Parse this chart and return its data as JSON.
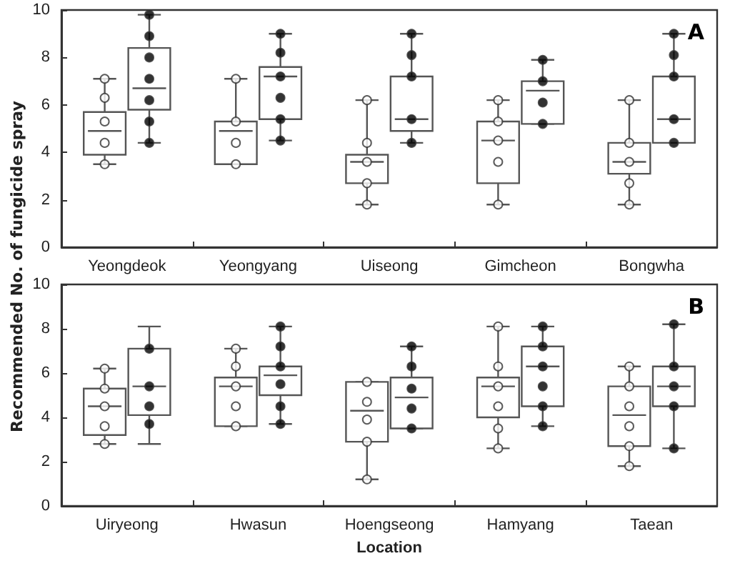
{
  "chart_data": [
    {
      "type": "box",
      "ylabel": "Recommended No. of fungicide spray",
      "annotations": [
        "A"
      ],
      "categories": [
        "Yeongdeok",
        "Yeongyang",
        "Uiseong",
        "Gimcheon",
        "Bongwha"
      ],
      "ylim": [
        0,
        10
      ],
      "yticks": [
        0,
        2,
        4,
        6,
        8,
        10
      ],
      "grid": false,
      "marker": "circle",
      "series": [
        {
          "type": "box",
          "color": "#555555",
          "boxes": [
            {
              "low": 3.5,
              "q1": 3.9,
              "median": 4.9,
              "q3": 5.7,
              "high": 7.1
            },
            {
              "low": 3.5,
              "q1": 3.5,
              "median": 4.9,
              "q3": 5.3,
              "high": 7.1
            },
            {
              "low": 1.8,
              "q1": 2.7,
              "median": 3.6,
              "q3": 3.9,
              "high": 6.2
            },
            {
              "low": 1.8,
              "q1": 2.7,
              "median": 4.5,
              "q3": 5.3,
              "high": 6.2
            },
            {
              "low": 1.8,
              "q1": 3.1,
              "median": 3.6,
              "q3": 4.4,
              "high": 6.2
            }
          ]
        },
        {
          "type": "box",
          "color": "#555555",
          "boxes": [
            {
              "low": 4.4,
              "q1": 5.8,
              "median": 6.7,
              "q3": 8.4,
              "high": 9.8
            },
            {
              "low": 4.5,
              "q1": 5.4,
              "median": 7.2,
              "q3": 7.6,
              "high": 9.0
            },
            {
              "low": 4.4,
              "q1": 4.9,
              "median": 5.4,
              "q3": 7.2,
              "high": 9.0
            },
            {
              "low": 5.2,
              "q1": 5.2,
              "median": 6.6,
              "q3": 7.0,
              "high": 7.9
            },
            {
              "low": 4.4,
              "q1": 4.4,
              "median": 5.4,
              "q3": 7.2,
              "high": 9.0
            }
          ]
        },
        {
          "type": "scatter",
          "color": "#ffffff",
          "x": [
            "Yeongdeok",
            "Yeongdeok",
            "Yeongdeok",
            "Yeongdeok",
            "Yeongdeok",
            "Yeongyang",
            "Yeongyang",
            "Yeongyang",
            "Yeongyang",
            "Uiseong",
            "Uiseong",
            "Uiseong",
            "Uiseong",
            "Uiseong",
            "Gimcheon",
            "Gimcheon",
            "Gimcheon",
            "Gimcheon",
            "Gimcheon",
            "Bongwha",
            "Bongwha",
            "Bongwha",
            "Bongwha",
            "Bongwha"
          ],
          "values": [
            7.1,
            6.3,
            5.3,
            4.4,
            3.5,
            7.1,
            5.3,
            4.4,
            3.5,
            6.2,
            4.4,
            3.6,
            2.7,
            1.8,
            6.2,
            5.3,
            4.5,
            3.6,
            1.8,
            6.2,
            4.4,
            3.6,
            2.7,
            1.8
          ]
        },
        {
          "type": "scatter",
          "color": "#000000",
          "x": [
            "Yeongdeok",
            "Yeongdeok",
            "Yeongdeok",
            "Yeongdeok",
            "Yeongdeok",
            "Yeongdeok",
            "Yeongdeok",
            "Yeongyang",
            "Yeongyang",
            "Yeongyang",
            "Yeongyang",
            "Yeongyang",
            "Yeongyang",
            "Uiseong",
            "Uiseong",
            "Uiseong",
            "Uiseong",
            "Uiseong",
            "Gimcheon",
            "Gimcheon",
            "Gimcheon",
            "Gimcheon",
            "Bongwha",
            "Bongwha",
            "Bongwha",
            "Bongwha",
            "Bongwha"
          ],
          "values": [
            9.8,
            8.9,
            8.0,
            7.1,
            6.2,
            5.3,
            4.4,
            9.0,
            8.2,
            7.2,
            6.3,
            5.4,
            4.5,
            9.0,
            8.1,
            7.2,
            5.4,
            4.4,
            7.9,
            7.0,
            6.1,
            5.2,
            9.0,
            8.1,
            7.2,
            5.4,
            4.4
          ]
        }
      ]
    },
    {
      "type": "box",
      "xlabel": "Location",
      "annotations": [
        "B"
      ],
      "categories": [
        "Uiryeong",
        "Hwasun",
        "Hoengseong",
        "Hamyang",
        "Taean"
      ],
      "ylim": [
        0,
        10
      ],
      "yticks": [
        0,
        2,
        4,
        6,
        8,
        10
      ],
      "grid": false,
      "marker": "circle",
      "series": [
        {
          "type": "box",
          "color": "#555555",
          "boxes": [
            {
              "low": 2.8,
              "q1": 3.2,
              "median": 4.5,
              "q3": 5.3,
              "high": 6.2
            },
            {
              "low": 3.6,
              "q1": 3.6,
              "median": 5.4,
              "q3": 5.8,
              "high": 7.1
            },
            {
              "low": 1.2,
              "q1": 2.9,
              "median": 4.3,
              "q3": 5.6,
              "high": 5.6
            },
            {
              "low": 2.6,
              "q1": 4.0,
              "median": 5.4,
              "q3": 5.8,
              "high": 8.1
            },
            {
              "low": 1.8,
              "q1": 2.7,
              "median": 4.1,
              "q3": 5.4,
              "high": 6.3
            }
          ]
        },
        {
          "type": "box",
          "color": "#555555",
          "boxes": [
            {
              "low": 2.8,
              "q1": 4.1,
              "median": 5.4,
              "q3": 7.1,
              "high": 8.1
            },
            {
              "low": 3.7,
              "q1": 5.0,
              "median": 5.9,
              "q3": 6.3,
              "high": 8.1
            },
            {
              "low": 3.5,
              "q1": 3.5,
              "median": 4.9,
              "q3": 5.8,
              "high": 7.2
            },
            {
              "low": 3.6,
              "q1": 4.5,
              "median": 6.3,
              "q3": 7.2,
              "high": 8.1
            },
            {
              "low": 2.6,
              "q1": 4.5,
              "median": 5.4,
              "q3": 6.3,
              "high": 8.2
            }
          ]
        },
        {
          "type": "scatter",
          "color": "#ffffff",
          "x": [
            "Uiryeong",
            "Uiryeong",
            "Uiryeong",
            "Uiryeong",
            "Uiryeong",
            "Hwasun",
            "Hwasun",
            "Hwasun",
            "Hwasun",
            "Hwasun",
            "Hoengseong",
            "Hoengseong",
            "Hoengseong",
            "Hoengseong",
            "Hoengseong",
            "Hamyang",
            "Hamyang",
            "Hamyang",
            "Hamyang",
            "Hamyang",
            "Hamyang",
            "Taean",
            "Taean",
            "Taean",
            "Taean",
            "Taean",
            "Taean"
          ],
          "values": [
            6.2,
            5.3,
            4.5,
            3.6,
            2.8,
            7.1,
            6.3,
            5.4,
            4.5,
            3.6,
            5.6,
            4.7,
            3.9,
            2.9,
            1.2,
            8.1,
            6.3,
            5.4,
            4.5,
            3.5,
            2.6,
            6.3,
            5.4,
            4.5,
            3.6,
            2.7,
            1.8
          ]
        },
        {
          "type": "scatter",
          "color": "#000000",
          "x": [
            "Uiryeong",
            "Uiryeong",
            "Uiryeong",
            "Uiryeong",
            "Hwasun",
            "Hwasun",
            "Hwasun",
            "Hwasun",
            "Hwasun",
            "Hwasun",
            "Hoengseong",
            "Hoengseong",
            "Hoengseong",
            "Hoengseong",
            "Hoengseong",
            "Hamyang",
            "Hamyang",
            "Hamyang",
            "Hamyang",
            "Hamyang",
            "Hamyang",
            "Taean",
            "Taean",
            "Taean",
            "Taean",
            "Taean"
          ],
          "values": [
            7.1,
            5.4,
            4.5,
            3.7,
            8.1,
            7.2,
            6.3,
            5.5,
            4.5,
            3.7,
            7.2,
            6.3,
            5.3,
            4.4,
            3.5,
            8.1,
            7.2,
            6.3,
            5.4,
            4.5,
            3.6,
            8.2,
            6.3,
            5.4,
            4.5,
            2.6
          ]
        }
      ]
    }
  ]
}
